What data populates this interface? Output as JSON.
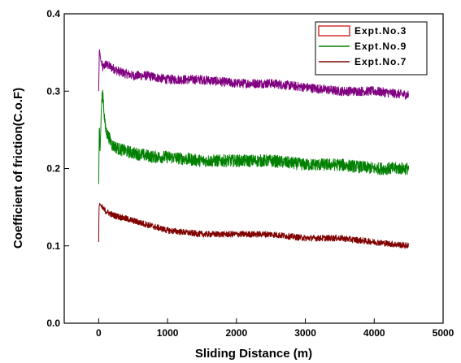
{
  "chart_data": {
    "type": "line",
    "title": "",
    "xlabel": "Sliding Distance (m)",
    "ylabel": "Coefficient of friction(C.o.F)",
    "xlim": [
      -500,
      5000
    ],
    "ylim": [
      0.0,
      0.4
    ],
    "x_ticks": [
      0,
      1000,
      2000,
      3000,
      4000,
      5000
    ],
    "x_tick_labels": [
      "0",
      "1000",
      "2000",
      "3000",
      "4000",
      "5000"
    ],
    "y_ticks": [
      0.0,
      0.1,
      0.2,
      0.3,
      0.4
    ],
    "y_tick_labels": [
      "0.0",
      "0.1",
      "0.2",
      "0.3",
      "0.4"
    ],
    "grid": false,
    "legend_position": "top-right",
    "series": [
      {
        "name": "Expt.No.3",
        "legend_style": "box",
        "color": "#800080",
        "x": [
          0,
          10,
          30,
          60,
          100,
          200,
          300,
          500,
          700,
          1000,
          1500,
          2000,
          2500,
          3000,
          3500,
          4000,
          4500
        ],
        "y": [
          0.3,
          0.355,
          0.34,
          0.33,
          0.335,
          0.33,
          0.325,
          0.32,
          0.32,
          0.315,
          0.315,
          0.31,
          0.31,
          0.305,
          0.3,
          0.3,
          0.295
        ]
      },
      {
        "name": "Expt.No.9",
        "legend_style": "line",
        "color": "#008000",
        "x": [
          0,
          10,
          20,
          40,
          60,
          80,
          100,
          150,
          200,
          300,
          500,
          800,
          1000,
          1500,
          2000,
          2500,
          3000,
          3500,
          4000,
          4500
        ],
        "y": [
          0.18,
          0.26,
          0.22,
          0.28,
          0.3,
          0.27,
          0.25,
          0.24,
          0.23,
          0.225,
          0.22,
          0.215,
          0.215,
          0.21,
          0.21,
          0.21,
          0.205,
          0.205,
          0.2,
          0.2
        ]
      },
      {
        "name": "Expt.No.7",
        "legend_style": "line",
        "color": "#800000",
        "x": [
          0,
          5,
          15,
          40,
          100,
          200,
          400,
          600,
          800,
          1000,
          1500,
          2000,
          2500,
          3000,
          3500,
          4000,
          4500
        ],
        "y": [
          0.105,
          0.15,
          0.155,
          0.15,
          0.145,
          0.14,
          0.135,
          0.13,
          0.125,
          0.12,
          0.115,
          0.115,
          0.115,
          0.11,
          0.11,
          0.105,
          0.1
        ]
      }
    ]
  }
}
